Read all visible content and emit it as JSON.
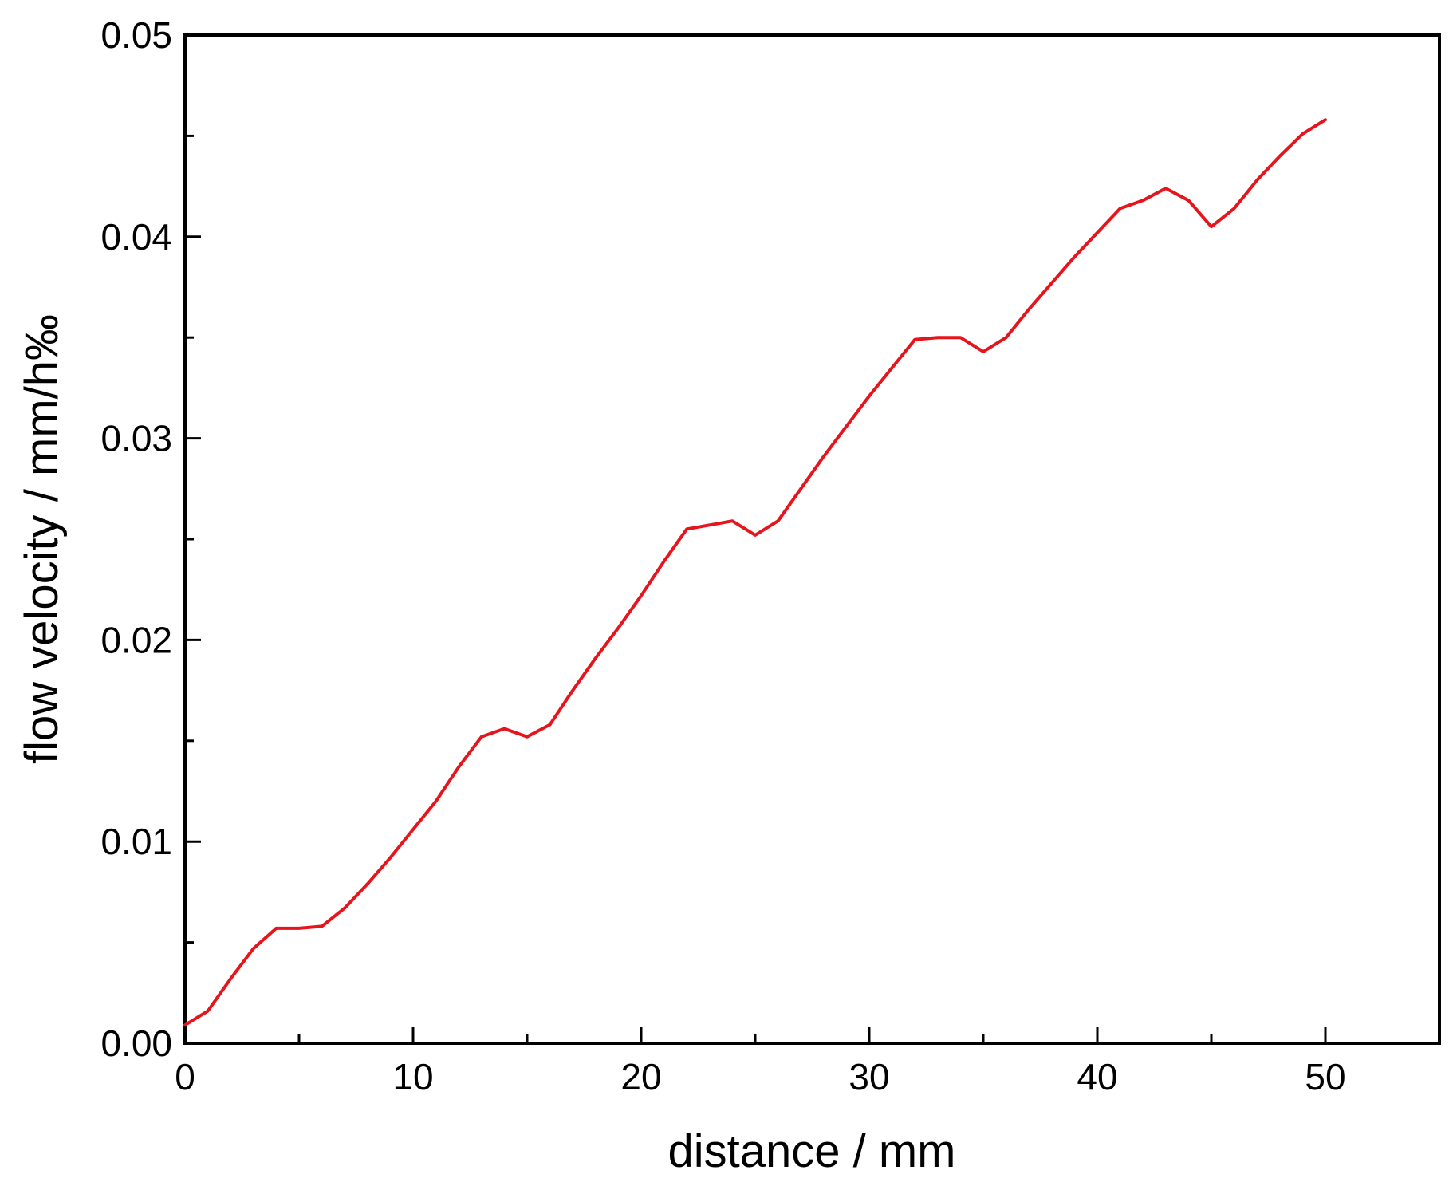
{
  "chart_data": {
    "type": "line",
    "xlabel": "distance  / mm",
    "ylabel": "flow velocity / mm/h‰",
    "xlim": [
      0,
      55
    ],
    "ylim": [
      0,
      0.05
    ],
    "x_ticks": [
      "0",
      "10",
      "20",
      "30",
      "40",
      "50"
    ],
    "y_ticks": [
      "0.00",
      "0.01",
      "0.02",
      "0.03",
      "0.04",
      "0.05"
    ],
    "grid": false,
    "legend": "none",
    "line_color": "#e8141c",
    "series": [
      {
        "x": [
          0,
          1,
          2,
          3,
          4,
          5,
          6,
          7,
          8,
          9,
          10,
          11,
          12,
          13,
          14,
          15,
          16,
          17,
          18,
          19,
          20,
          21,
          22,
          23,
          24,
          25,
          26,
          27,
          28,
          29,
          30,
          31,
          32,
          33,
          34,
          35,
          36,
          37,
          38,
          39,
          40,
          41,
          42,
          43,
          44,
          45,
          46,
          47,
          48,
          49,
          50
        ],
        "values": [
          0.0009,
          0.0016,
          0.0032,
          0.0047,
          0.0057,
          0.0057,
          0.0058,
          0.0067,
          0.0079,
          0.0092,
          0.0106,
          0.012,
          0.0137,
          0.0152,
          0.0156,
          0.0152,
          0.0158,
          0.0175,
          0.0191,
          0.0206,
          0.0222,
          0.0239,
          0.0255,
          0.0257,
          0.0259,
          0.0252,
          0.0259,
          0.0275,
          0.0291,
          0.0306,
          0.0321,
          0.0335,
          0.0349,
          0.035,
          0.035,
          0.0343,
          0.035,
          0.0364,
          0.0377,
          0.039,
          0.0402,
          0.0414,
          0.0418,
          0.0424,
          0.0418,
          0.0405,
          0.0414,
          0.0428,
          0.044,
          0.0451,
          0.0458
        ]
      }
    ]
  }
}
